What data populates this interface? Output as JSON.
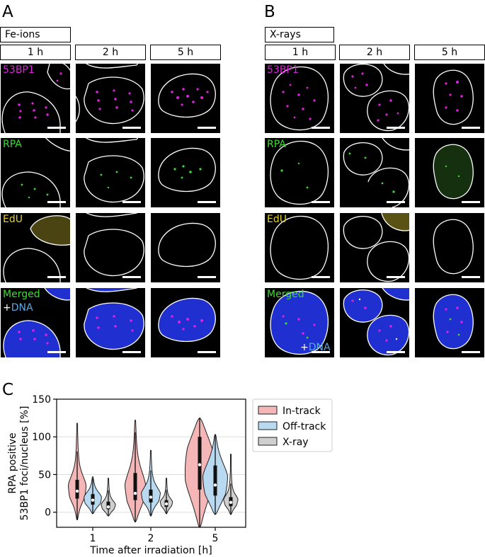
{
  "panel_a": {
    "letter": "A",
    "group": "Fe-ions",
    "times": [
      "1 h",
      "2 h",
      "5 h"
    ]
  },
  "panel_b": {
    "letter": "B",
    "group": "X-rays",
    "times": [
      "1 h",
      "2 h",
      "5 h"
    ]
  },
  "channels": {
    "c53bp1": "53BP1",
    "rpa": "RPA",
    "edu": "EdU",
    "merged_a": "Merged",
    "merged_b": "Merged",
    "dna_plus": "+",
    "dna": "DNA"
  },
  "colors": {
    "magenta": "#e020e0",
    "green": "#3ddc2f",
    "yellow": "#e6d22a",
    "blue": "#1f2fd0",
    "in_track": "#f4b6b6",
    "off_track": "#b9d9f0",
    "x_ray": "#cfcfcf"
  },
  "panel_c": {
    "letter": "C"
  },
  "chart_data": {
    "type": "violin",
    "ylabel_line1": "RPA positive",
    "ylabel_line2": "53BP1 foci/nucleus [%]",
    "xlabel": "Time after irradiation [h]",
    "categories": [
      "1",
      "2",
      "5"
    ],
    "ylim": [
      -20,
      150
    ],
    "yticks": [
      0,
      50,
      100,
      150
    ],
    "grid": "horizontal",
    "legend_position": "top-right",
    "series": [
      {
        "name": "In-track",
        "color": "#f4b6b6",
        "min": [
          -10,
          -13,
          -20
        ],
        "max": [
          118,
          122,
          125
        ],
        "q1": [
          18,
          16,
          30
        ],
        "median": [
          28,
          25,
          63
        ],
        "q3": [
          43,
          52,
          100
        ]
      },
      {
        "name": "Off-track",
        "color": "#b9d9f0",
        "min": [
          -2,
          -5,
          -3
        ],
        "max": [
          47,
          82,
          103
        ],
        "q1": [
          10,
          13,
          22
        ],
        "median": [
          16,
          20,
          36
        ],
        "q3": [
          24,
          30,
          62
        ]
      },
      {
        "name": "X-ray",
        "color": "#cfcfcf",
        "min": [
          -5,
          -2,
          -3
        ],
        "max": [
          45,
          45,
          77
        ],
        "q1": [
          4,
          7,
          8
        ],
        "median": [
          7,
          11,
          13
        ],
        "q3": [
          14,
          16,
          20
        ]
      }
    ]
  }
}
